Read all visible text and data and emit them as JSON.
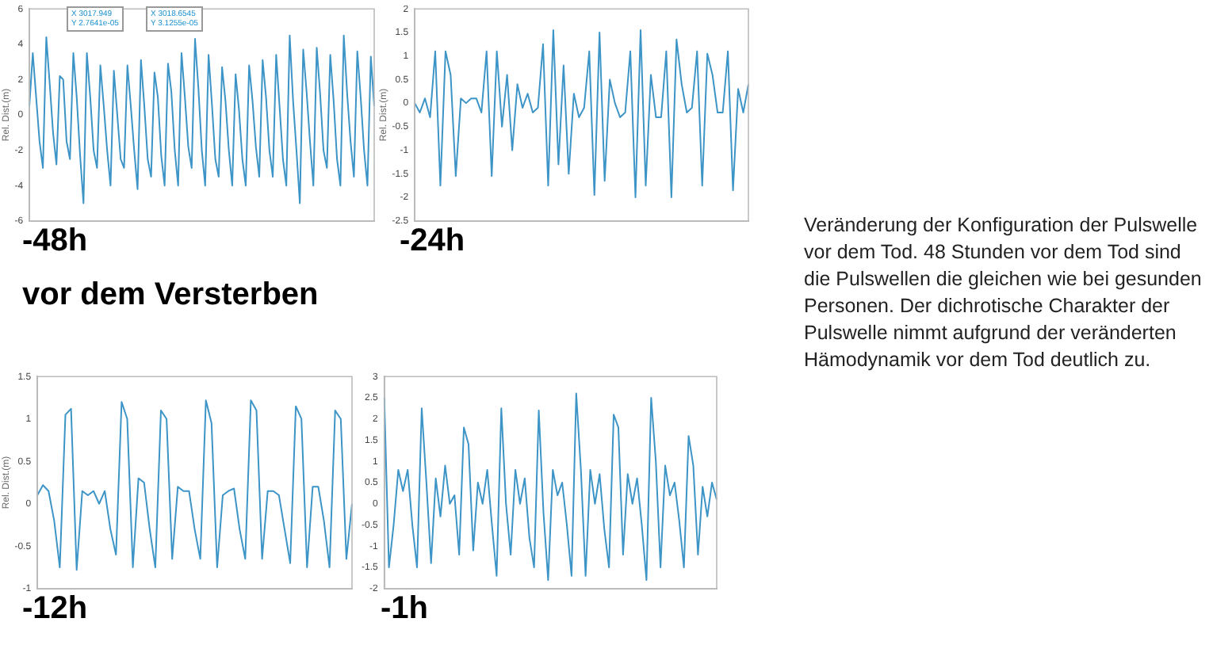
{
  "chart_data": [
    {
      "type": "line",
      "xlabel": "-48h",
      "ylabel": "Rel. Dist.(m)",
      "annotations": [
        "X 3017.949",
        "Y 2.7641e-05",
        "X 3018.6545",
        "Y 3.1255e-05",
        "vor dem Versterben"
      ],
      "categories": [
        null,
        null,
        null,
        null,
        null,
        null,
        null,
        null,
        null,
        null,
        null,
        null,
        null,
        null,
        null,
        null,
        null,
        null,
        null,
        null,
        null,
        null,
        null,
        null,
        null,
        null,
        null,
        null,
        null,
        null,
        null,
        null,
        null,
        null,
        null,
        null,
        null,
        null,
        null,
        null,
        null,
        null,
        null,
        null,
        null,
        null,
        null,
        null,
        null,
        null,
        null,
        null,
        null,
        null,
        null,
        null,
        null,
        null,
        null,
        null,
        null,
        null,
        null,
        null,
        null,
        null,
        null,
        null,
        null,
        null,
        null,
        null,
        null,
        null,
        null,
        null,
        null,
        null,
        null,
        null,
        null,
        null,
        null,
        null,
        null,
        null,
        null,
        null,
        null,
        null,
        null,
        null,
        null,
        null,
        null,
        null,
        null,
        null,
        null,
        null,
        null,
        null,
        null
      ],
      "series": [
        {
          "color": "#3d94c6",
          "values": [
            0.5,
            3.5,
            1,
            -1.5,
            -3,
            4.4,
            1.8,
            -1,
            -2.8,
            2.2,
            2,
            -1.5,
            -2.5,
            3.5,
            1,
            -2.3,
            -5,
            3.5,
            1,
            -2,
            -3,
            2.8,
            0.5,
            -2,
            -4,
            2.5,
            0,
            -2.5,
            -3,
            2.8,
            0.5,
            -2,
            -4.2,
            3.1,
            0.5,
            -2.5,
            -3.5,
            2.4,
            1,
            -2.3,
            -4,
            2.9,
            1.3,
            -2,
            -4,
            3.5,
            1,
            -1.8,
            -3,
            4.3,
            1.5,
            -2,
            -4,
            3.4,
            0.6,
            -2.5,
            -3.5,
            2.7,
            0.8,
            -2,
            -4,
            2.3,
            0.3,
            -2.5,
            -4,
            2.8,
            0.8,
            -1.8,
            -3.5,
            3.1,
            1,
            -2,
            -3.5,
            3.4,
            0.5,
            -2.5,
            -4,
            4.5,
            0.8,
            -2,
            -5,
            3.7,
            1.3,
            -1.5,
            -4,
            3.8,
            1.2,
            -2,
            -3,
            3.4,
            0.8,
            -2.5,
            -4,
            4.5,
            1.2,
            -1.5,
            -3.5,
            3.6,
            1,
            -2,
            -4,
            3.3,
            0.5
          ]
        }
      ],
      "ylim": [
        -6,
        6
      ],
      "yticks": [
        -6,
        -4,
        -2,
        0,
        2,
        4,
        6
      ],
      "tick_labels": "y",
      "grid": false,
      "legend": false,
      "marker": "none",
      "line_style": "solid"
    },
    {
      "type": "line",
      "xlabel": "-24h",
      "ylabel": "Rel. Dist.(m)",
      "categories": [
        null,
        null,
        null,
        null,
        null,
        null,
        null,
        null,
        null,
        null,
        null,
        null,
        null,
        null,
        null,
        null,
        null,
        null,
        null,
        null,
        null,
        null,
        null,
        null,
        null,
        null,
        null,
        null,
        null,
        null,
        null,
        null,
        null,
        null,
        null,
        null,
        null,
        null,
        null,
        null,
        null,
        null,
        null,
        null,
        null,
        null,
        null,
        null,
        null,
        null,
        null,
        null,
        null,
        null,
        null,
        null,
        null,
        null,
        null,
        null,
        null,
        null,
        null,
        null,
        null,
        null
      ],
      "series": [
        {
          "color": "#3d94c6",
          "values": [
            0,
            -0.2,
            0.1,
            -0.3,
            1.1,
            -1.75,
            1.1,
            0.6,
            -1.55,
            0.1,
            0,
            0.1,
            0.1,
            -0.2,
            1.1,
            -1.55,
            1.1,
            -0.5,
            0.6,
            -1,
            0.4,
            -0.1,
            0.2,
            -0.2,
            -0.1,
            1.25,
            -1.75,
            1.55,
            -1.3,
            0.8,
            -1.5,
            0.2,
            -0.3,
            -0.1,
            1.1,
            -1.95,
            1.5,
            -1.65,
            0.5,
            0,
            -0.3,
            -0.2,
            1.1,
            -2,
            1.55,
            -1.75,
            0.6,
            -0.3,
            -0.3,
            1.1,
            -2,
            1.35,
            0.4,
            -0.2,
            -0.1,
            1.1,
            -1.75,
            1.05,
            0.6,
            -0.2,
            -0.2,
            1.1,
            -1.85,
            0.3,
            -0.2,
            0.4
          ]
        }
      ],
      "ylim": [
        -2.5,
        2
      ],
      "yticks": [
        -2.5,
        -2,
        -1.5,
        -1,
        -0.5,
        0,
        0.5,
        1,
        1.5,
        2
      ],
      "tick_labels": "y",
      "grid": false,
      "legend": false,
      "marker": "none",
      "line_style": "solid"
    },
    {
      "type": "line",
      "xlabel": "-12h",
      "ylabel": "Rel. Dist.(m)",
      "categories": [
        null,
        null,
        null,
        null,
        null,
        null,
        null,
        null,
        null,
        null,
        null,
        null,
        null,
        null,
        null,
        null,
        null,
        null,
        null,
        null,
        null,
        null,
        null,
        null,
        null,
        null,
        null,
        null,
        null,
        null,
        null,
        null,
        null,
        null,
        null,
        null,
        null,
        null,
        null,
        null,
        null,
        null,
        null,
        null,
        null,
        null,
        null,
        null,
        null,
        null,
        null,
        null,
        null,
        null,
        null,
        null,
        null
      ],
      "series": [
        {
          "color": "#3d94c6",
          "values": [
            0.1,
            0.22,
            0.15,
            -0.2,
            -0.75,
            1.05,
            1.12,
            -0.78,
            0.15,
            0.1,
            0.15,
            0,
            0.15,
            -0.3,
            -0.6,
            1.2,
            1,
            -0.75,
            0.3,
            0.25,
            -0.3,
            -0.75,
            1.1,
            1,
            -0.65,
            0.2,
            0.15,
            0.15,
            -0.3,
            -0.65,
            1.22,
            0.95,
            -0.75,
            0.1,
            0.15,
            0.18,
            -0.3,
            -0.65,
            1.22,
            1.1,
            -0.65,
            0.15,
            0.15,
            0.1,
            -0.3,
            -0.7,
            1.15,
            1,
            -0.75,
            0.2,
            0.2,
            -0.2,
            -0.75,
            1.1,
            1,
            -0.65,
            0
          ]
        }
      ],
      "ylim": [
        -1,
        1.5
      ],
      "yticks": [
        -1,
        -0.5,
        0,
        0.5,
        1,
        1.5
      ],
      "tick_labels": "y",
      "grid": false,
      "legend": false,
      "marker": "none",
      "line_style": "solid"
    },
    {
      "type": "line",
      "xlabel": "-1h",
      "categories": [
        null,
        null,
        null,
        null,
        null,
        null,
        null,
        null,
        null,
        null,
        null,
        null,
        null,
        null,
        null,
        null,
        null,
        null,
        null,
        null,
        null,
        null,
        null,
        null,
        null,
        null,
        null,
        null,
        null,
        null,
        null,
        null,
        null,
        null,
        null,
        null,
        null,
        null,
        null,
        null,
        null,
        null,
        null,
        null,
        null,
        null,
        null,
        null,
        null,
        null,
        null,
        null,
        null,
        null,
        null,
        null,
        null,
        null,
        null,
        null,
        null,
        null,
        null,
        null,
        null,
        null,
        null,
        null,
        null,
        null,
        null,
        null
      ],
      "series": [
        {
          "color": "#3d94c6",
          "values": [
            2.5,
            -1.5,
            -0.5,
            0.8,
            0.3,
            0.8,
            -0.5,
            -1.5,
            2.25,
            0.5,
            -1.4,
            0.6,
            -0.3,
            0.9,
            0,
            0.2,
            -1.2,
            1.8,
            1.4,
            -1.1,
            0.5,
            0,
            0.8,
            -0.5,
            -1.7,
            2.25,
            0,
            -1.2,
            0.8,
            0,
            0.6,
            -0.8,
            -1.5,
            2.2,
            -0.2,
            -1.8,
            0.8,
            0.2,
            0.5,
            -0.5,
            -1.7,
            2.6,
            0.8,
            -1.7,
            0.8,
            0,
            0.7,
            -0.6,
            -1.5,
            2.1,
            1.8,
            -1.2,
            0.7,
            0,
            0.6,
            -0.5,
            -1.8,
            2.5,
            1,
            -1.5,
            0.9,
            0.2,
            0.5,
            -0.4,
            -1.5,
            1.6,
            0.9,
            -1.2,
            0.4,
            -0.3,
            0.5,
            0.1
          ]
        }
      ],
      "ylim": [
        -2,
        3
      ],
      "yticks": [
        -2,
        -1.5,
        -1,
        -0.5,
        0,
        0.5,
        1,
        1.5,
        2,
        2.5,
        3
      ],
      "tick_labels": "y",
      "grid": false,
      "legend": false,
      "marker": "none",
      "line_style": "solid"
    },
    {
      "type": "other",
      "annotations": [
        "Veränderung der Konfiguration der Pulswelle vor dem Tod. 48 Stunden vor dem Tod sind die Pulswellen die gleichen wie bei gesunden Personen. Der dichrotische Charakter der Pulswelle nimmt aufgrund der veränderten Hämodynamik vor dem Tod deutlich zu."
      ]
    }
  ]
}
